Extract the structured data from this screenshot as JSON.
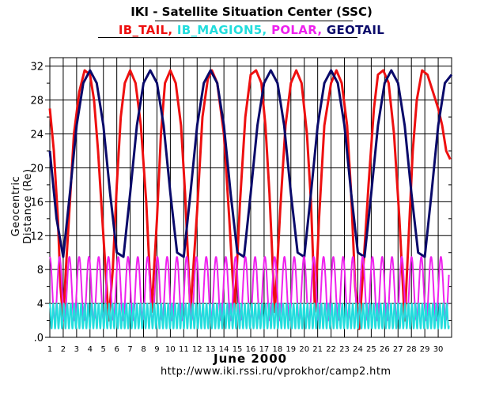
{
  "header": {
    "title": "IKI - Satellite Situation Center (SSC)"
  },
  "legend": [
    {
      "name": "IB_TAIL",
      "color": "#ee1010",
      "sep": ","
    },
    {
      "name": "IB_MAGION5",
      "color": "#22dddd",
      "sep": ","
    },
    {
      "name": "POLAR",
      "color": "#ee22ee",
      "sep": ","
    },
    {
      "name": "GEOTAIL",
      "color": "#0a0a6a",
      "sep": ""
    }
  ],
  "footer": {
    "month_label": "June   2000",
    "url": "http://www.iki.rssi.ru/vprokhor/camp2.htm"
  },
  "chart_data": {
    "type": "line",
    "title": "IKI - Satellite Situation Center (SSC)",
    "ylabel": "Geocentric Distance (Re)",
    "xlabel": "June   2000",
    "xlim": [
      1,
      31
    ],
    "ylim": [
      0,
      33
    ],
    "grid": true,
    "y_ticks": [
      0,
      4,
      8,
      12,
      16,
      20,
      24,
      28,
      32
    ],
    "y_tick_labels": [
      ".0",
      "4",
      "8",
      "12",
      "16",
      "20",
      "24",
      "28",
      "32"
    ],
    "x_ticks": [
      1,
      2,
      3,
      4,
      5,
      6,
      7,
      8,
      9,
      10,
      11,
      12,
      13,
      14,
      15,
      16,
      17,
      18,
      19,
      20,
      21,
      22,
      23,
      24,
      25,
      26,
      27,
      28,
      29,
      30
    ],
    "series": [
      {
        "name": "IB_TAIL",
        "color": "#ee1010",
        "x": [
          1.0,
          1.3,
          1.6,
          1.8,
          2.0,
          2.2,
          2.5,
          2.8,
          3.2,
          3.6,
          4.0,
          4.3,
          4.6,
          5.0,
          5.4,
          5.7,
          6.0,
          6.3,
          6.6,
          7.0,
          7.4,
          7.8,
          8.2,
          8.6,
          9.0,
          9.3,
          9.6,
          10.0,
          10.4,
          10.8,
          11.1,
          11.5,
          12.0,
          12.4,
          12.8,
          13.1,
          13.5,
          14.0,
          14.4,
          14.8,
          15.2,
          15.6,
          16.0,
          16.4,
          16.8,
          17.1,
          17.4,
          17.8,
          18.2,
          18.6,
          19.0,
          19.4,
          19.8,
          20.2,
          20.5,
          20.8,
          21.1,
          21.5,
          22.0,
          22.4,
          22.8,
          23.2,
          23.5,
          23.8,
          24.1,
          24.4,
          24.8,
          25.2,
          25.5,
          25.9,
          26.3,
          26.7,
          27.1,
          27.5,
          27.8,
          28.1,
          28.4,
          28.8,
          29.2,
          29.6,
          30.0,
          30.3,
          30.6,
          30.9
        ],
        "y": [
          27,
          22,
          14,
          6,
          2,
          8,
          16,
          24,
          29,
          31.5,
          31,
          28,
          22,
          12,
          2,
          8,
          18,
          26,
          30,
          31.5,
          30,
          25,
          16,
          3,
          14,
          24,
          30,
          31.5,
          30,
          25,
          17,
          3,
          15,
          26,
          30.5,
          31.5,
          30,
          24,
          14,
          3,
          16,
          26,
          31,
          31.5,
          30,
          25,
          17,
          3,
          15,
          25,
          30,
          31.5,
          30,
          24,
          16,
          3,
          14,
          25,
          30,
          31.5,
          30,
          25,
          17,
          6,
          1,
          8,
          18,
          27,
          31,
          31.5,
          30,
          24,
          14,
          2,
          12,
          22,
          28,
          31.5,
          31,
          29,
          27,
          25,
          22,
          21
        ]
      },
      {
        "name": "GEOTAIL",
        "color": "#0a0a6a",
        "x": [
          1.0,
          1.5,
          2.0,
          2.5,
          3.0,
          3.5,
          4.0,
          4.5,
          5.0,
          5.5,
          6.0,
          6.5,
          7.0,
          7.5,
          8.0,
          8.5,
          9.0,
          9.5,
          10.0,
          10.5,
          11.0,
          11.5,
          12.0,
          12.5,
          13.0,
          13.5,
          14.0,
          14.5,
          15.0,
          15.5,
          16.0,
          16.5,
          17.0,
          17.5,
          18.0,
          18.5,
          19.0,
          19.5,
          20.0,
          20.5,
          21.0,
          21.5,
          22.0,
          22.5,
          23.0,
          23.5,
          24.0,
          24.5,
          25.0,
          25.5,
          26.0,
          26.5,
          27.0,
          27.5,
          28.0,
          28.5,
          29.0,
          29.5,
          30.0,
          30.5,
          31.0
        ],
        "y": [
          22,
          14,
          9.5,
          17,
          25,
          30,
          31.5,
          30,
          25,
          17,
          10,
          9.5,
          17,
          25,
          30,
          31.5,
          30,
          25,
          17,
          10,
          9.5,
          17,
          25,
          30,
          31.5,
          30,
          25,
          17,
          10,
          9.5,
          17,
          25,
          30,
          31.5,
          30,
          25,
          17,
          10,
          9.5,
          17,
          25,
          30,
          31.5,
          30,
          25,
          17,
          10,
          9.5,
          17,
          25,
          30,
          31.5,
          30,
          25,
          17,
          10,
          9.5,
          17,
          25,
          30,
          31
        ]
      },
      {
        "name": "POLAR",
        "color": "#ee22ee",
        "pattern": {
          "period_days": 0.73,
          "min": 2,
          "max": 9.5,
          "phase_day": 1.0
        }
      },
      {
        "name": "IB_MAGION5",
        "color": "#22dddd",
        "pattern": {
          "period_days": 0.26,
          "min": 1,
          "max": 4,
          "phase_day": 1.0
        }
      }
    ]
  }
}
